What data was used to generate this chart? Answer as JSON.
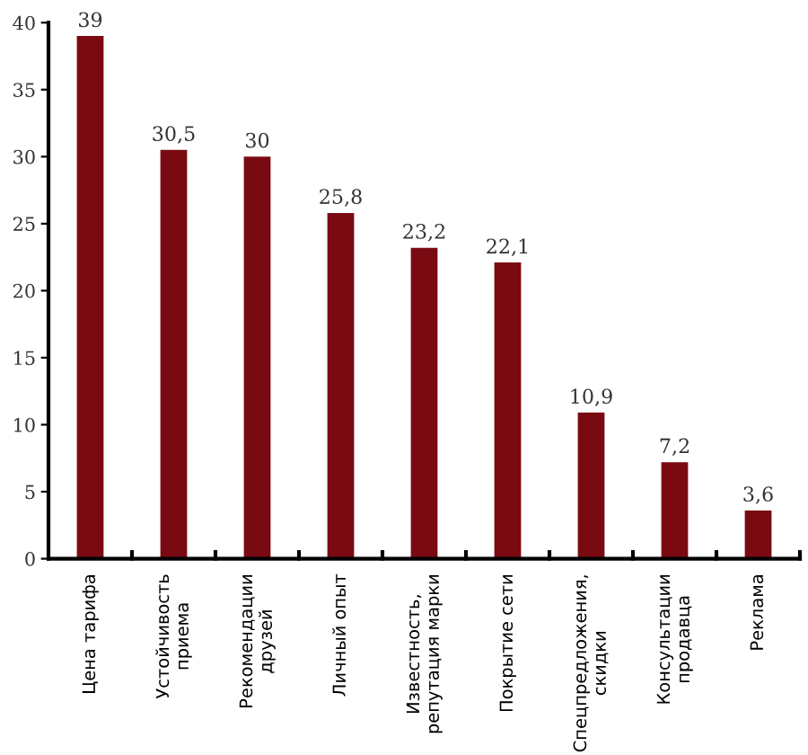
{
  "chart_data": {
    "type": "bar",
    "categories": [
      "Цена тарифа",
      "Устойчивость\nприема",
      "Рекомендации\nдрузей",
      "Личный опыт",
      "Известность,\nрепутация марки",
      "Покрытие сети",
      "Спецпредложения,\nскидки",
      "Консультации\nпродавца",
      "Реклама"
    ],
    "values": [
      39,
      30.5,
      30,
      25.8,
      23.2,
      22.1,
      10.9,
      7.2,
      3.6
    ],
    "value_labels": [
      "39",
      "30,5",
      "30",
      "25,8",
      "23,2",
      "22,1",
      "10,9",
      "7,2",
      "3,6"
    ],
    "color": "#7a0a12",
    "ylim": [
      0,
      40
    ],
    "yticks": [
      0,
      5,
      10,
      15,
      20,
      25,
      30,
      35,
      40
    ],
    "grid": false
  }
}
